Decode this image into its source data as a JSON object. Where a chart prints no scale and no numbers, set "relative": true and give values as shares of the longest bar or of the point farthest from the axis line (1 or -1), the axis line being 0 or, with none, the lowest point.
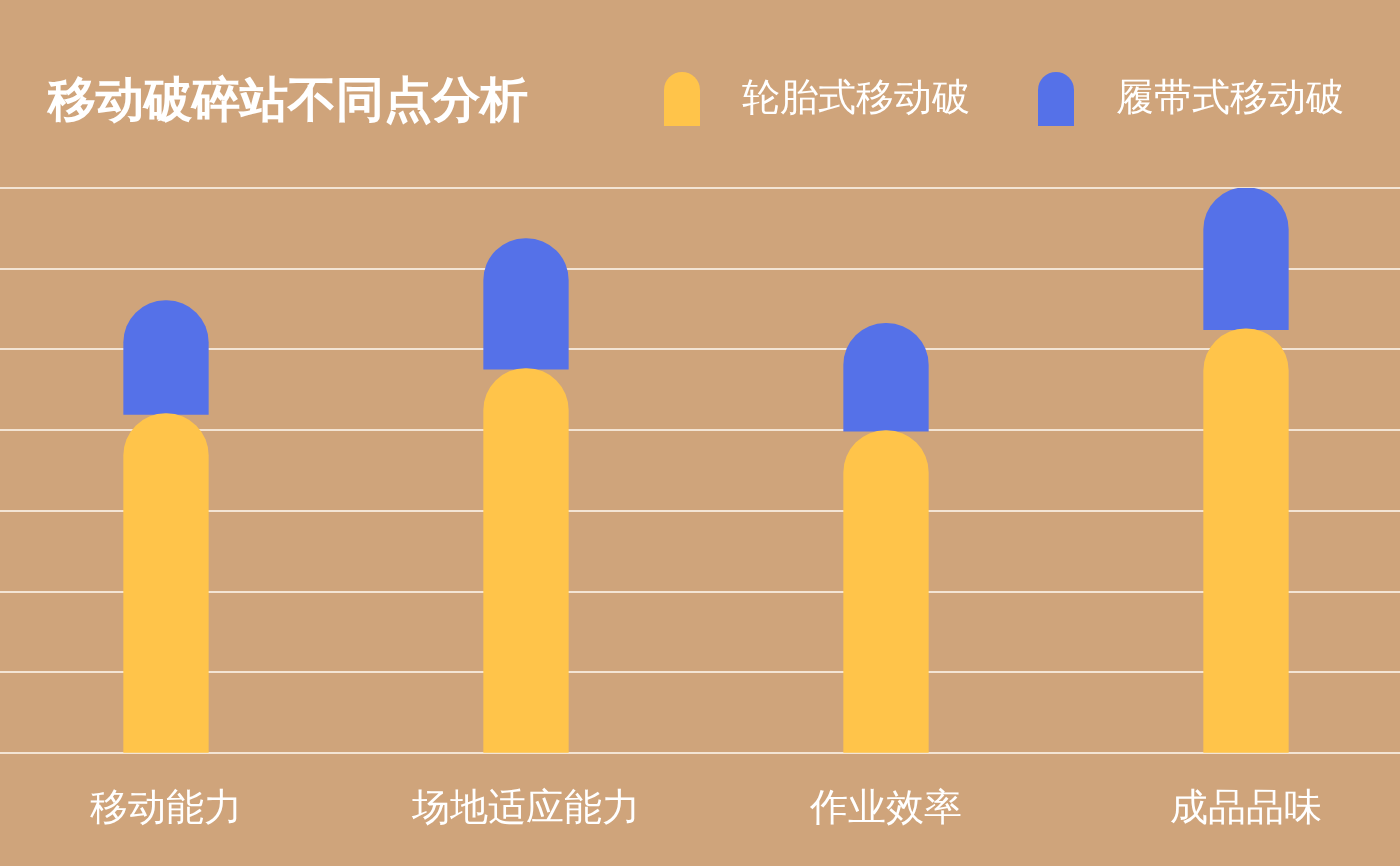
{
  "chart_data": {
    "type": "bar",
    "title": "移动破碎站不同点分析",
    "categories": [
      "移动能力",
      "场地适应能力",
      "作业效率",
      "成品品味"
    ],
    "series": [
      {
        "name": "轮胎式移动破",
        "color": "#ffc44a",
        "values": [
          0.6,
          0.68,
          0.57,
          0.75
        ]
      },
      {
        "name": "履带式移动破",
        "color": "#5571e8",
        "values": [
          0.2,
          0.23,
          0.19,
          0.25
        ]
      }
    ],
    "stacked": true,
    "relative": true,
    "grid": "y",
    "legend": "top right"
  }
}
